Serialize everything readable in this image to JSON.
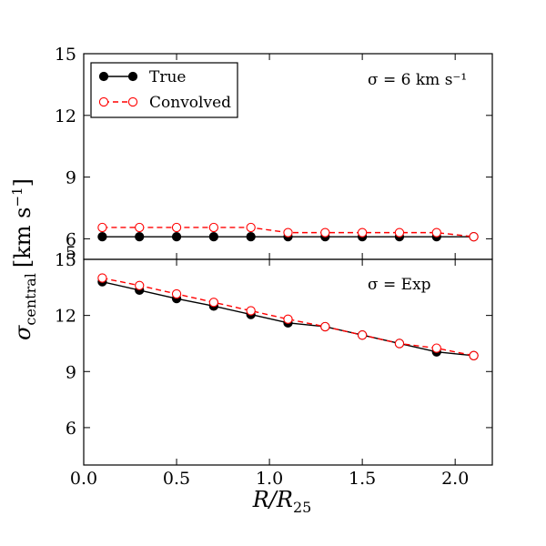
{
  "chart_data": [
    {
      "type": "line",
      "panel": "top",
      "annotation": "σ = 6 km s⁻¹",
      "x": [
        0.1,
        0.3,
        0.5,
        0.7,
        0.9,
        1.1,
        1.3,
        1.5,
        1.7,
        1.9,
        2.1
      ],
      "series": [
        {
          "name": "True",
          "style": "solid",
          "marker": "filled-circle",
          "color": "#000000",
          "values": [
            6.1,
            6.1,
            6.1,
            6.1,
            6.1,
            6.1,
            6.1,
            6.1,
            6.1,
            6.1,
            6.1
          ]
        },
        {
          "name": "Convolved",
          "style": "dashed",
          "marker": "open-circle",
          "color": "#ff0000",
          "values": [
            6.55,
            6.55,
            6.55,
            6.55,
            6.55,
            6.3,
            6.3,
            6.3,
            6.3,
            6.3,
            6.1
          ]
        }
      ],
      "ylim": [
        5,
        15
      ],
      "yticks": [
        "6",
        "9",
        "12",
        "15"
      ],
      "extra_ytick_label": "5",
      "legend": {
        "position": "top-left",
        "entries": [
          "True",
          "Convolved"
        ]
      }
    },
    {
      "type": "line",
      "panel": "bottom",
      "annotation": "σ = Exp",
      "x": [
        0.1,
        0.3,
        0.5,
        0.7,
        0.9,
        1.1,
        1.3,
        1.5,
        1.7,
        1.9,
        2.1
      ],
      "series": [
        {
          "name": "True",
          "style": "solid",
          "marker": "filled-circle",
          "color": "#000000",
          "values": [
            13.8,
            13.35,
            12.9,
            12.5,
            12.05,
            11.6,
            11.4,
            10.95,
            10.5,
            10.05,
            9.85
          ]
        },
        {
          "name": "Convolved",
          "style": "dashed",
          "marker": "open-circle",
          "color": "#ff0000",
          "values": [
            14.0,
            13.6,
            13.15,
            12.7,
            12.25,
            11.8,
            11.4,
            10.95,
            10.5,
            10.25,
            9.85
          ]
        }
      ],
      "ylim": [
        4,
        15
      ],
      "yticks": [
        "6",
        "9",
        "12",
        "15"
      ]
    }
  ],
  "axes": {
    "xlabel": "R/R",
    "xlabel_sub": "25",
    "ylabel": "σ",
    "ylabel_sub": "central",
    "ylabel_units": "[km s",
    "ylabel_units_sup": "−1",
    "ylabel_units_close": "]",
    "xlim": [
      0.0,
      2.2
    ],
    "xticks": [
      "0.0",
      "0.5",
      "1.0",
      "1.5",
      "2.0"
    ]
  },
  "legend": {
    "true_label": "True",
    "convolved_label": "Convolved"
  },
  "colors": {
    "true": "#000000",
    "convolved": "#ff0000"
  }
}
